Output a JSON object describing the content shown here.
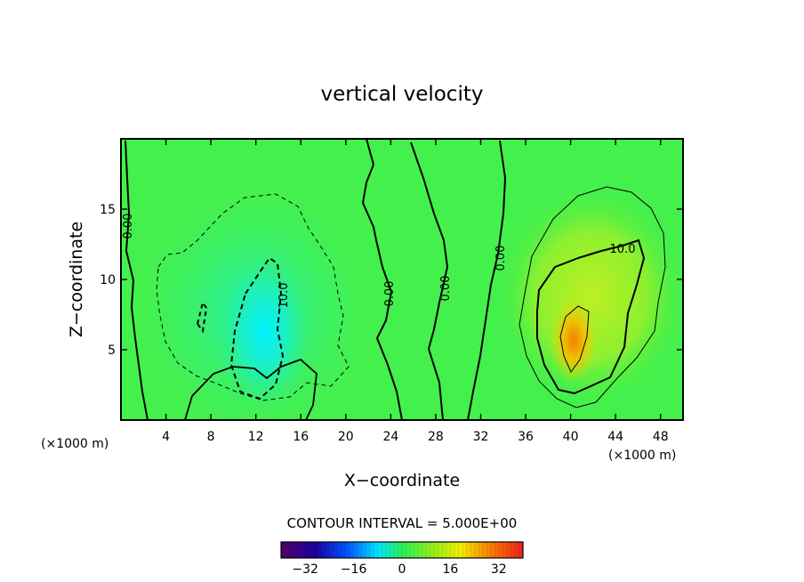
{
  "chart_data": {
    "type": "heatmap",
    "title": "vertical velocity",
    "xlabel": "X−coordinate",
    "ylabel": "Z−coordinate",
    "x_unit": "(×1000 m)",
    "y_unit": "(×1000 m)",
    "xlim": [
      0,
      50
    ],
    "ylim": [
      0,
      20
    ],
    "x_ticks": [
      4,
      8,
      12,
      16,
      20,
      24,
      28,
      32,
      36,
      40,
      44,
      48
    ],
    "y_ticks": [
      5,
      10,
      15
    ],
    "contour_interval_text": "CONTOUR INTERVAL = 5.000E+00",
    "contour_interval": 5.0,
    "colorbar": {
      "min": -40,
      "max": 40,
      "ticks": [
        -32,
        -16,
        0,
        16,
        32
      ],
      "tick_labels": [
        "−32",
        "−16",
        "0",
        "16",
        "32"
      ]
    },
    "contour_labels": [
      {
        "text": "0.00",
        "x": 0.6,
        "z": 14.2
      },
      {
        "text": "10.0",
        "x": 14.5,
        "z": 8.8
      },
      {
        "text": "0.00",
        "x": 24.3,
        "z": 9.2
      },
      {
        "text": "0.00",
        "x": 29.0,
        "z": 9.7
      },
      {
        "text": "0.00",
        "x": 33.2,
        "z": 11.7
      },
      {
        "text": "10.0",
        "x": 44.0,
        "z": 12.3
      }
    ],
    "features": [
      {
        "kind": "downdraft",
        "center_x": 12.5,
        "center_z": 6.5,
        "min_value": -18
      },
      {
        "kind": "updraft",
        "center_x": 40.2,
        "center_z": 5.8,
        "max_value": 24
      }
    ]
  }
}
